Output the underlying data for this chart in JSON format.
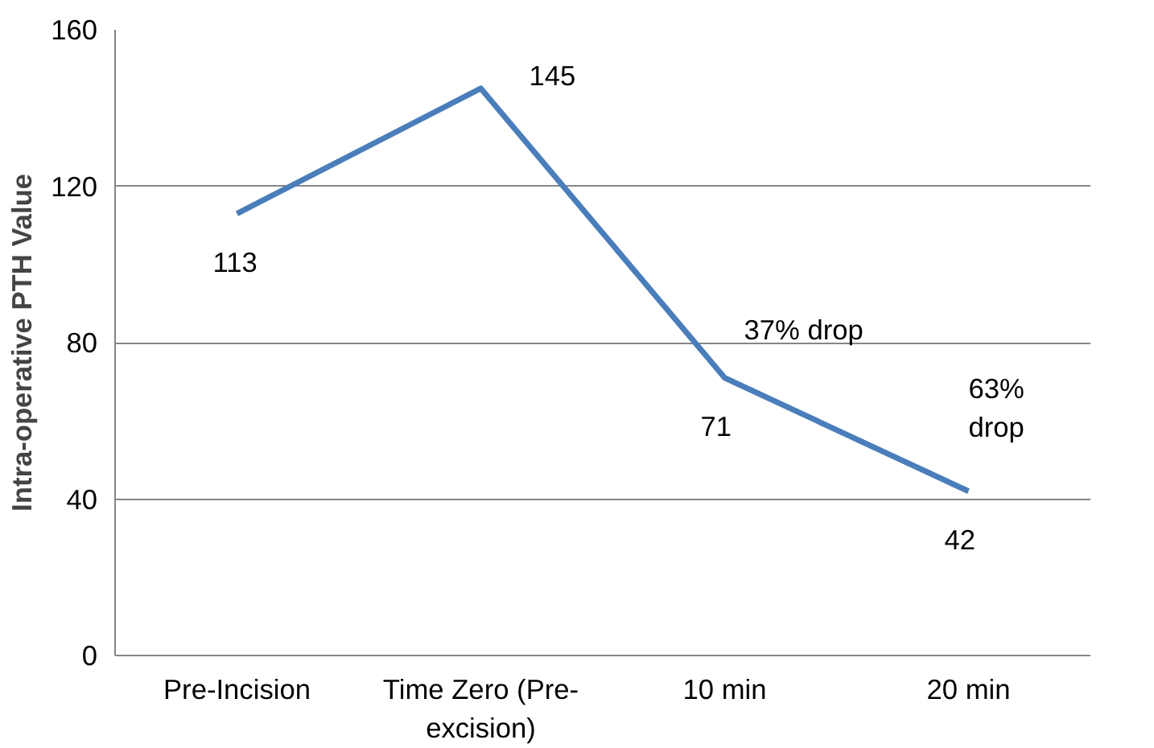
{
  "chart_data": {
    "type": "line",
    "ylabel": "Intra-operative PTH Value",
    "categories": [
      "Pre-Incision",
      "Time Zero (Pre-excision)",
      "10 min",
      "20 min"
    ],
    "series": [
      {
        "color": "#4a7ebb",
        "values": [
          113,
          145,
          71,
          42
        ]
      }
    ],
    "data_labels": true,
    "ylim": [
      0,
      160
    ],
    "yticks": [
      0,
      40,
      80,
      120,
      160
    ],
    "grid": "y",
    "marker": "none",
    "line_style": "solid",
    "annotations": [
      "37% drop",
      "63% drop"
    ]
  }
}
